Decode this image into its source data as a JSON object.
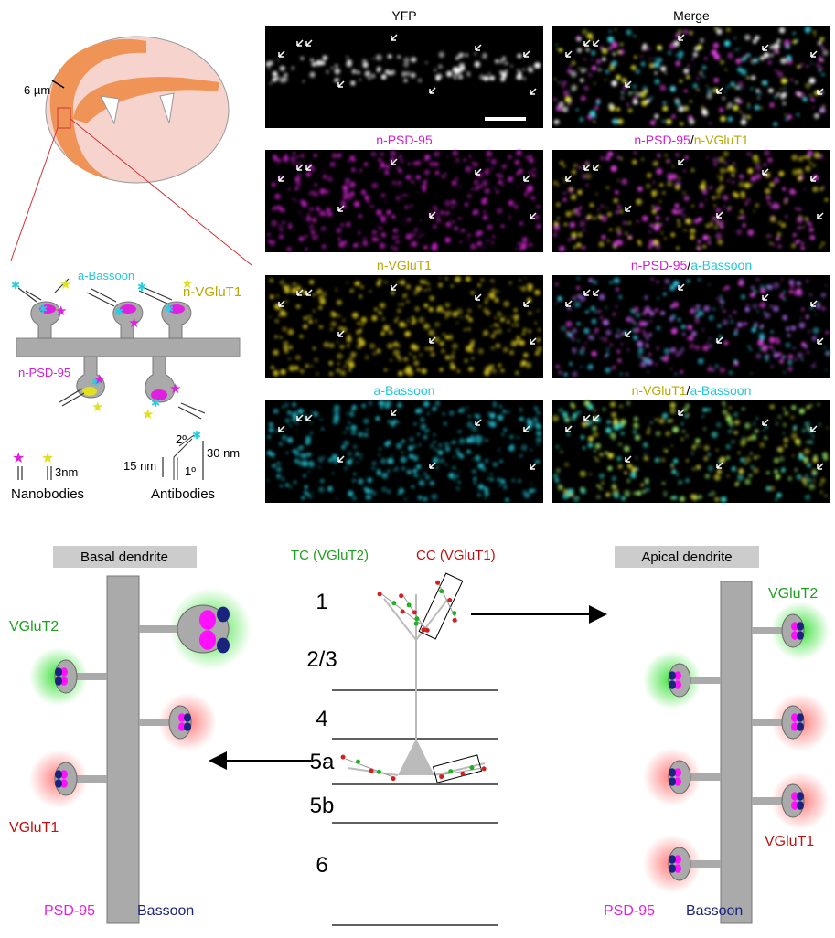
{
  "brain": {
    "depth_label": "6 µm"
  },
  "schematic": {
    "bassoon_label": "a-Bassoon",
    "vglut1_label": "n-VGluT1",
    "psd95_label": "n-PSD-95",
    "nm3": "3nm",
    "secondary": "2º",
    "primary": "1º",
    "nm15": "15 nm",
    "nm30": "30 nm",
    "nanobodies": "Nanobodies",
    "antibodies": "Antibodies"
  },
  "panels": [
    {
      "title": [
        {
          "text": "YFP",
          "color": "#000000"
        }
      ]
    },
    {
      "title": [
        {
          "text": "Merge",
          "color": "#000000"
        }
      ]
    },
    {
      "title": [
        {
          "text": "n-PSD-95",
          "color": "#d020d0"
        }
      ]
    },
    {
      "title": [
        {
          "text": "n-PSD-95",
          "color": "#d020d0"
        },
        {
          "text": "/",
          "color": "#000000"
        },
        {
          "text": "n-VGluT1",
          "color": "#b8a800"
        }
      ]
    },
    {
      "title": [
        {
          "text": "n-VGluT1",
          "color": "#b8a800"
        }
      ]
    },
    {
      "title": [
        {
          "text": "n-PSD-95",
          "color": "#d020d0"
        },
        {
          "text": "/",
          "color": "#000000"
        },
        {
          "text": "a-Bassoon",
          "color": "#20c8d8"
        }
      ]
    },
    {
      "title": [
        {
          "text": "a-Bassoon",
          "color": "#20c8d8"
        }
      ]
    },
    {
      "title": [
        {
          "text": "n-VGluT1",
          "color": "#b8a800"
        },
        {
          "text": "/",
          "color": "#000000"
        },
        {
          "text": "a-Bassoon",
          "color": "#20c8d8"
        }
      ]
    }
  ],
  "basal": {
    "title": "Basal dendrite",
    "vglut2": "VGluT2",
    "vglut1": "VGluT1",
    "psd95": "PSD-95",
    "bassoon": "Bassoon"
  },
  "layers": {
    "tc": "TC (VGluT2)",
    "cc": "CC (VGluT1)",
    "names": [
      "1",
      "2/3",
      "4",
      "5a",
      "5b",
      "6"
    ]
  },
  "apical": {
    "title": "Apical dendrite",
    "vglut2": "VGluT2",
    "vglut1": "VGluT1",
    "psd95": "PSD-95",
    "bassoon": "Bassoon"
  }
}
